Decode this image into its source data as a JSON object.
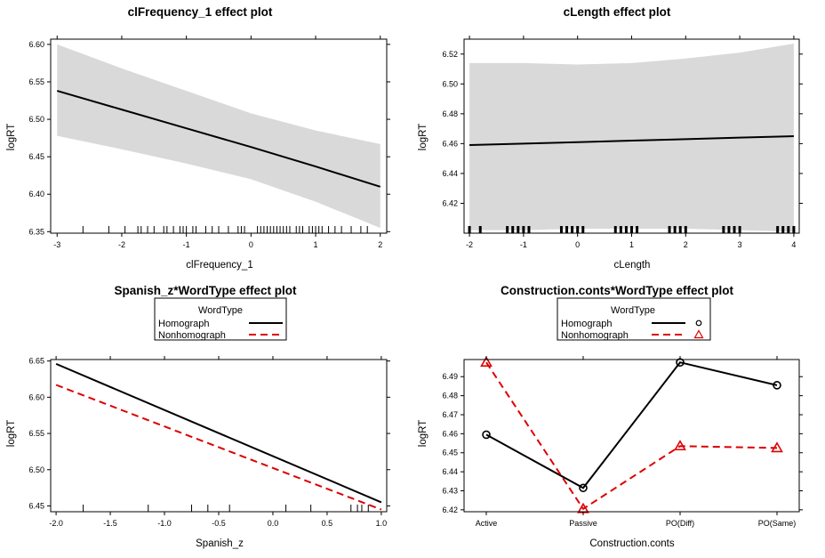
{
  "chart_data": [
    {
      "type": "line",
      "title": "clFrequency_1 effect plot",
      "xlabel": "clFrequency_1",
      "ylabel": "logRT",
      "xlim": [
        -3.1,
        2.1
      ],
      "ylim": [
        6.348,
        6.607
      ],
      "xticks": [
        -3,
        -2,
        -1,
        0,
        1,
        2
      ],
      "yticks": [
        6.35,
        6.4,
        6.45,
        6.5,
        6.55,
        6.6
      ],
      "x": [
        -3,
        -2,
        -1,
        0,
        1,
        2
      ],
      "y": [
        6.538,
        6.513,
        6.488,
        6.463,
        6.437,
        6.41
      ],
      "band_lower": [
        6.478,
        6.46,
        6.441,
        6.42,
        6.39,
        6.355
      ],
      "band_upper": [
        6.6,
        6.568,
        6.538,
        6.508,
        6.485,
        6.467
      ],
      "rug": [
        -2.6,
        -2.2,
        -1.95,
        -1.75,
        -1.7,
        -1.6,
        -1.5,
        -1.35,
        -1.3,
        -1.2,
        -1.1,
        -1.05,
        -1.0,
        -0.9,
        -0.85,
        -0.7,
        -0.6,
        -0.5,
        -0.35,
        -0.2,
        -0.15,
        -0.1,
        0.1,
        0.15,
        0.2,
        0.25,
        0.3,
        0.35,
        0.4,
        0.45,
        0.5,
        0.55,
        0.6,
        0.7,
        0.75,
        0.8,
        0.9,
        0.95,
        1.0,
        1.05,
        1.1,
        1.2,
        1.3,
        1.4,
        1.55,
        1.7,
        1.8
      ]
    },
    {
      "type": "line",
      "title": "cLength effect plot",
      "xlabel": "cLength",
      "ylabel": "logRT",
      "xlim": [
        -2.1,
        4.1
      ],
      "ylim": [
        6.4,
        6.53
      ],
      "xticks": [
        -2,
        -1,
        0,
        1,
        2,
        3,
        4
      ],
      "yticks": [
        6.42,
        6.44,
        6.46,
        6.48,
        6.5,
        6.52
      ],
      "x": [
        -2,
        -1,
        0,
        1,
        2,
        3,
        4
      ],
      "y": [
        6.459,
        6.46,
        6.461,
        6.462,
        6.463,
        6.464,
        6.465
      ],
      "band_lower": [
        6.402,
        6.402,
        6.403,
        6.403,
        6.403,
        6.402,
        6.401
      ],
      "band_upper": [
        6.514,
        6.514,
        6.513,
        6.514,
        6.517,
        6.521,
        6.527
      ],
      "rug": [
        -2,
        -1.8,
        -1.3,
        -1.2,
        -1.1,
        -1.0,
        -0.9,
        -0.3,
        -0.2,
        -0.1,
        0.0,
        0.1,
        0.7,
        0.8,
        0.9,
        1.0,
        1.1,
        1.7,
        1.8,
        1.9,
        2.0,
        2.7,
        2.8,
        2.9,
        3.0,
        3.7,
        3.8,
        3.9,
        4.0
      ]
    },
    {
      "type": "line",
      "title": "Spanish_z*WordType effect plot",
      "xlabel": "Spanish_z",
      "ylabel": "logRT",
      "legend_title": "WordType",
      "xlim": [
        -2.05,
        1.05
      ],
      "ylim": [
        6.442,
        6.652
      ],
      "xticks": [
        -2.0,
        -1.5,
        -1.0,
        -0.5,
        0.0,
        0.5,
        1.0
      ],
      "xtick_labels": [
        "-2.0",
        "-1.5",
        "-1.0",
        "-0.5",
        "0.0",
        "0.5",
        "1.0"
      ],
      "yticks": [
        6.45,
        6.5,
        6.55,
        6.6,
        6.65
      ],
      "series": [
        {
          "name": "Homograph",
          "color": "#000000",
          "dash": "none",
          "x": [
            -2.0,
            1.0
          ],
          "y": [
            6.646,
            6.455
          ]
        },
        {
          "name": "Nonhomograph",
          "color": "#dd0000",
          "dash": "8,5",
          "x": [
            -2.0,
            1.0
          ],
          "y": [
            6.617,
            6.445
          ]
        }
      ],
      "rug": [
        -1.75,
        -1.15,
        -0.75,
        -0.6,
        -0.4,
        0.12,
        0.35,
        0.72,
        0.78,
        0.82,
        0.88
      ]
    },
    {
      "type": "line",
      "title": "Construction.conts*WordType effect plot",
      "xlabel": "Construction.conts",
      "ylabel": "logRT",
      "legend_title": "WordType",
      "categories": [
        "Active",
        "Passive",
        "PO(Diff)",
        "PO(Same)"
      ],
      "ylim": [
        6.419,
        6.499
      ],
      "yticks": [
        6.42,
        6.43,
        6.44,
        6.45,
        6.46,
        6.47,
        6.48,
        6.49
      ],
      "series": [
        {
          "name": "Homograph",
          "color": "#000000",
          "dash": "none",
          "marker": "circle",
          "values": [
            6.4595,
            6.4315,
            6.4975,
            6.4855
          ]
        },
        {
          "name": "Nonhomograph",
          "color": "#dd0000",
          "dash": "8,5",
          "marker": "triangle",
          "values": [
            6.4975,
            6.4205,
            6.4535,
            6.4525
          ]
        }
      ]
    }
  ]
}
